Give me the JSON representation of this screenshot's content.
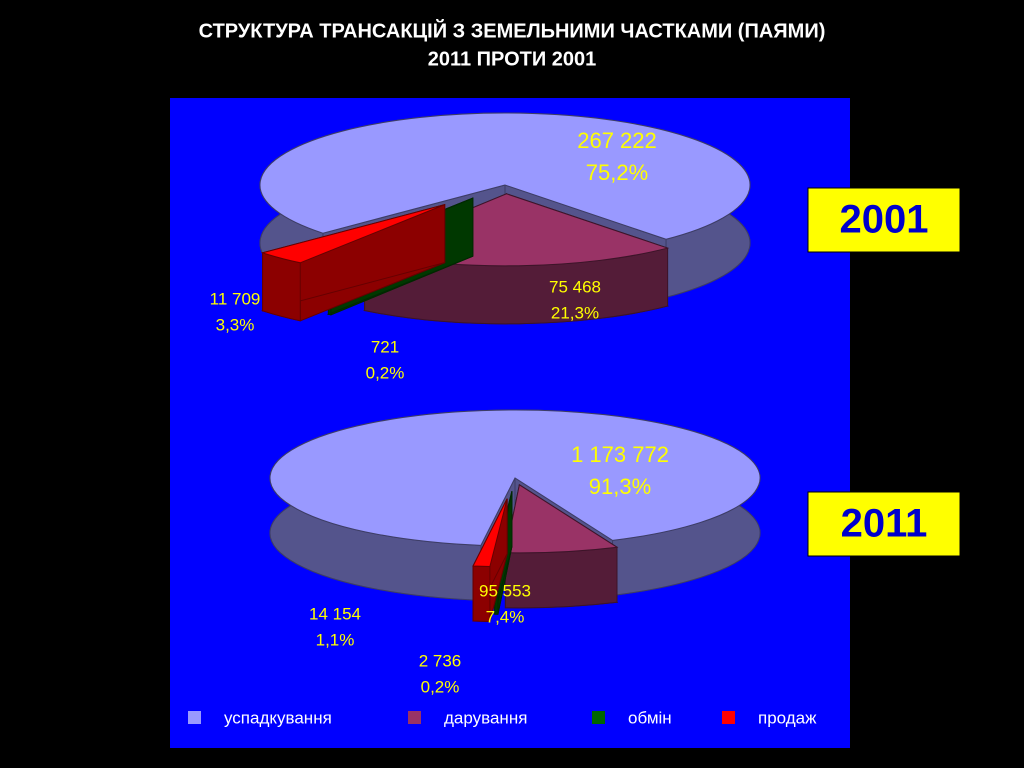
{
  "header": {
    "lines": [
      "СТРУКТУРА ТРАНСАКЦІЙ З ЗЕМЕЛЬНИМИ ЧАСТКАМИ (ПАЯМИ)",
      "2011 ПРОТИ 2001"
    ]
  },
  "chart_data": [
    {
      "type": "pie",
      "title": "2001",
      "categories": [
        "успадкування",
        "дарування",
        "обмін",
        "продаж"
      ],
      "colors": [
        "#9999ff",
        "#993366",
        "#006600",
        "#ff0000"
      ],
      "values": [
        267222,
        75468,
        721,
        11709
      ],
      "value_labels": [
        "267 222",
        "75 468",
        "721",
        "11 709"
      ],
      "percentages": [
        75.2,
        21.3,
        0.2,
        3.3
      ],
      "percentage_labels": [
        "75,2%",
        "21,3%",
        "0,2%",
        "3,3%"
      ]
    },
    {
      "type": "pie",
      "title": "2011",
      "categories": [
        "успадкування",
        "дарування",
        "обмін",
        "продаж"
      ],
      "colors": [
        "#9999ff",
        "#993366",
        "#006600",
        "#ff0000"
      ],
      "values": [
        1173772,
        95553,
        2736,
        14154
      ],
      "value_labels": [
        "1 173 772",
        "95 553",
        "2 736",
        "14 154"
      ],
      "percentages": [
        91.3,
        7.4,
        0.2,
        1.1
      ],
      "percentage_labels": [
        "91,3%",
        "7,4%",
        "0,2%",
        "1,1%"
      ]
    }
  ]
}
